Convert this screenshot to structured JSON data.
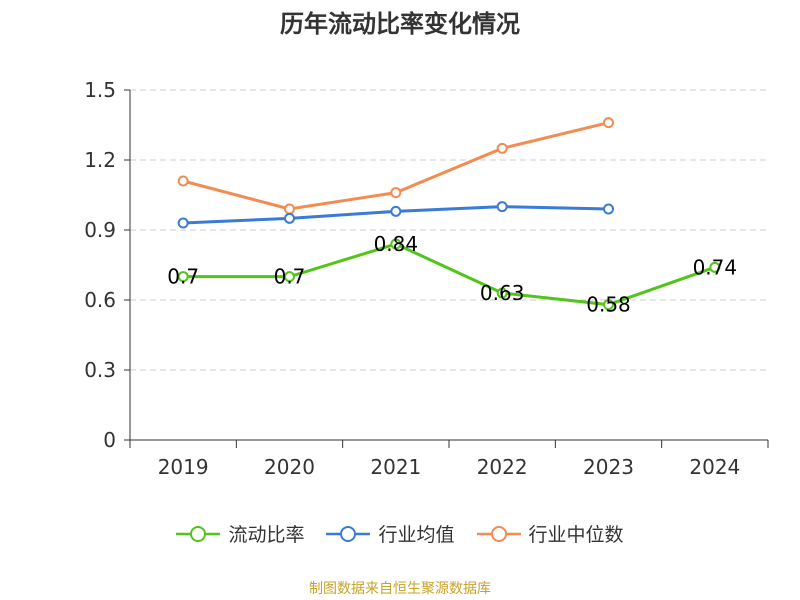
{
  "chart_data": {
    "type": "line",
    "title": "历年流动比率变化情况",
    "categories": [
      "2019",
      "2020",
      "2021",
      "2022",
      "2023",
      "2024"
    ],
    "yticks": [
      "0",
      "0.3",
      "0.6",
      "0.9",
      "1.2",
      "1.5"
    ],
    "ylim": [
      0,
      1.5
    ],
    "grid": true,
    "legend_position": "bottom",
    "series": [
      {
        "name": "流动比率",
        "color": "#52c41a",
        "values": [
          0.7,
          0.7,
          0.84,
          0.63,
          0.58,
          0.74
        ],
        "labels": [
          "0.7",
          "0.7",
          "0.84",
          "0.63",
          "0.58",
          "0.74"
        ]
      },
      {
        "name": "行业均值",
        "color": "#3a7bd5",
        "values": [
          0.93,
          0.95,
          0.98,
          1.0,
          0.99,
          null
        ]
      },
      {
        "name": "行业中位数",
        "color": "#f28c52",
        "values": [
          1.11,
          0.99,
          1.06,
          1.25,
          1.36,
          null
        ]
      }
    ]
  },
  "source": "制图数据来自恒生聚源数据库"
}
